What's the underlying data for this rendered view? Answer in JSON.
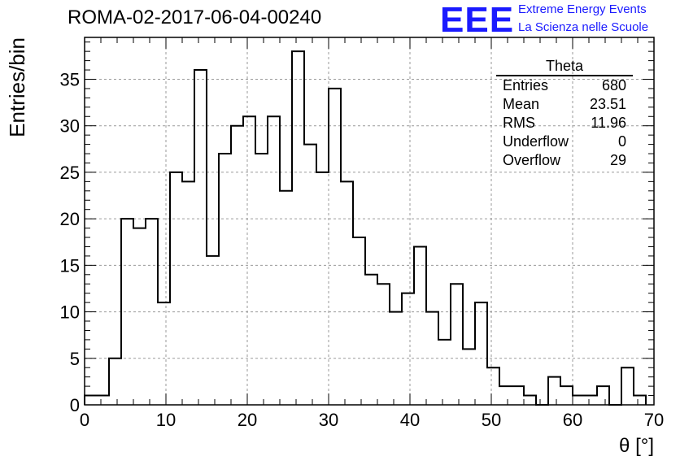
{
  "header": {
    "title": "ROMA-02-2017-06-04-00240",
    "logo_text": "EEE",
    "brand_line1": "Extreme Energy Events",
    "brand_line2": "La Scienza nelle Scuole"
  },
  "stats": {
    "title": "Theta",
    "rows": [
      {
        "label": "Entries",
        "value": "680"
      },
      {
        "label": "Mean",
        "value": "23.51"
      },
      {
        "label": "RMS",
        "value": "11.96"
      },
      {
        "label": "Underflow",
        "value": "0"
      },
      {
        "label": "Overflow",
        "value": "29"
      }
    ]
  },
  "colors": {
    "line": "#000000",
    "grid": "#9a9a9a",
    "brand": "#1a1aff"
  },
  "chart_data": {
    "type": "bar",
    "histogram": true,
    "bin_width": 1.5,
    "x_start": 0,
    "values": [
      1,
      1,
      5,
      20,
      19,
      20,
      11,
      25,
      24,
      36,
      16,
      27,
      30,
      31,
      27,
      31,
      23,
      38,
      28,
      25,
      34,
      24,
      18,
      14,
      13,
      10,
      12,
      17,
      10,
      7,
      13,
      6,
      11,
      4,
      2,
      2,
      1,
      0,
      3,
      2,
      1,
      1,
      2,
      0,
      4,
      1
    ],
    "xlabel": "θ [°]",
    "ylabel": "Entries/bin",
    "xlim": [
      0,
      70
    ],
    "ylim": [
      0,
      39.5
    ],
    "x_ticks": [
      "0",
      "10",
      "20",
      "30",
      "40",
      "50",
      "60",
      "70"
    ],
    "y_ticks": [
      "0",
      "5",
      "10",
      "15",
      "20",
      "25",
      "30",
      "35"
    ],
    "grid": true
  }
}
